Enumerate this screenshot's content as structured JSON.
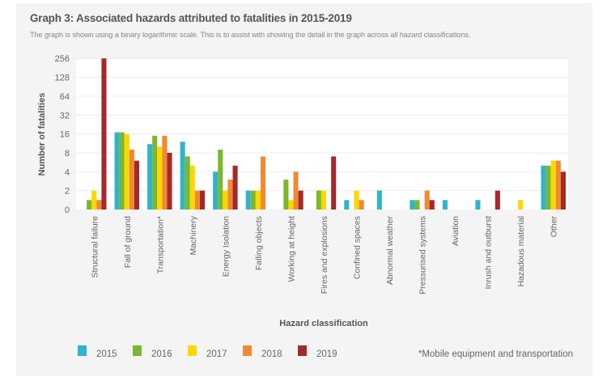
{
  "chart_data": {
    "type": "bar",
    "title": "Graph 3: Associated hazards attributed to fatalities in 2015-2019",
    "subtitle": "The graph is shown using a binary logarithmic scale. This is to assist with showing the detail in the graph across all hazard classifications.",
    "xlabel": "Hazard classification",
    "ylabel": "Number of fatalities",
    "yscale": "log2",
    "yticks": [
      "0",
      "2",
      "4",
      "8",
      "16",
      "32",
      "64",
      "128",
      "256"
    ],
    "ylim": [
      0,
      256
    ],
    "grid": true,
    "legend_position": "bottom",
    "note": "*Mobile equipment and transportation",
    "categories": [
      "Structural failure",
      "Fall of ground",
      "Transportation*",
      "Machinery",
      "Energy Isolation",
      "Falling objects",
      "Working at height",
      "Fires and explosions",
      "Confined spaces",
      "Abnormal weather",
      "Pressurised systems",
      "Aviation",
      "Inrush and outburst",
      "Hazadous material",
      "Other"
    ],
    "series": [
      {
        "name": "2015",
        "color": "#2fb4cc",
        "values": [
          0,
          17,
          11,
          12,
          4,
          2,
          0,
          0,
          1,
          2,
          1,
          1,
          1,
          0,
          5
        ]
      },
      {
        "name": "2016",
        "color": "#7db72f",
        "values": [
          1,
          17,
          15,
          7,
          9,
          2,
          3,
          2,
          0,
          0,
          1,
          0,
          0,
          0,
          5
        ]
      },
      {
        "name": "2017",
        "color": "#ffd700",
        "values": [
          2,
          16,
          10,
          5,
          2,
          2,
          1,
          2,
          2,
          0,
          0,
          0,
          0,
          1,
          6
        ]
      },
      {
        "name": "2018",
        "color": "#f08a32",
        "values": [
          1,
          9,
          15,
          2,
          3,
          7,
          4,
          0,
          1,
          0,
          2,
          0,
          0,
          0,
          6
        ]
      },
      {
        "name": "2019",
        "color": "#a5292b",
        "values": [
          256,
          6,
          8,
          2,
          5,
          0,
          2,
          7,
          0,
          0,
          1,
          0,
          2,
          0,
          4
        ]
      }
    ]
  }
}
